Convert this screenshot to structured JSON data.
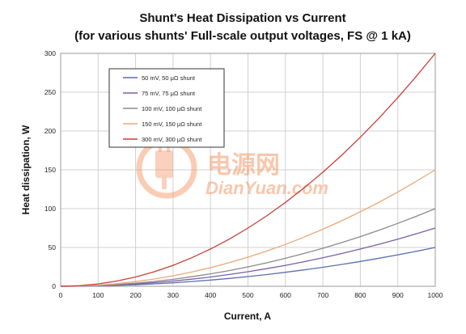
{
  "chart_data": {
    "type": "line",
    "title": "Shunt's Heat Dissipation vs Current",
    "subtitle": "(for various shunts' Full-scale output voltages, FS @ 1 kA)",
    "xlabel": "Current, A",
    "ylabel": "Heat dissipation, W",
    "xlim": [
      0,
      1000
    ],
    "ylim": [
      0,
      300
    ],
    "xticks": [
      "0",
      "100",
      "200",
      "300",
      "400",
      "500",
      "600",
      "700",
      "800",
      "900",
      "1000"
    ],
    "yticks": [
      "0",
      "50",
      "100",
      "150",
      "200",
      "250",
      "300"
    ],
    "grid": true,
    "legend_position": "top-left",
    "x": [
      0,
      50,
      100,
      150,
      200,
      250,
      300,
      350,
      400,
      450,
      500,
      550,
      600,
      650,
      700,
      750,
      800,
      850,
      900,
      950,
      1000
    ],
    "series": [
      {
        "name": "50 mV, 50 μΩ shunt",
        "color": "#5b6fb0",
        "values": [
          0,
          0.125,
          0.5,
          1.125,
          2,
          3.125,
          4.5,
          6.125,
          8,
          10.125,
          12.5,
          15.125,
          18,
          21.125,
          24.5,
          28.125,
          32,
          36.125,
          40.5,
          45.125,
          50
        ]
      },
      {
        "name": "75 mV, 75 μΩ shunt",
        "color": "#7b5fa6",
        "values": [
          0,
          0.1875,
          0.75,
          1.6875,
          3,
          4.6875,
          6.75,
          9.1875,
          12,
          15.1875,
          18.75,
          22.6875,
          27,
          31.6875,
          36.75,
          42.1875,
          48,
          54.1875,
          60.75,
          67.6875,
          75
        ]
      },
      {
        "name": "100 mV, 100 μΩ shunt",
        "color": "#8a8a8a",
        "values": [
          0,
          0.25,
          1,
          2.25,
          4,
          6.25,
          9,
          12.25,
          16,
          20.25,
          25,
          30.25,
          36,
          42.25,
          49,
          56.25,
          64,
          72.25,
          81,
          90.25,
          100
        ]
      },
      {
        "name": "150 mV, 150 μΩ shunt",
        "color": "#e8a878",
        "values": [
          0,
          0.375,
          1.5,
          3.375,
          6,
          9.375,
          13.5,
          18.375,
          24,
          30.375,
          37.5,
          45.375,
          54,
          63.375,
          73.5,
          84.375,
          96,
          108.375,
          121.5,
          135.375,
          150
        ]
      },
      {
        "name": "300 mV, 300 μΩ shunt",
        "color": "#c8403a",
        "values": [
          0,
          0.75,
          3,
          6.75,
          12,
          18.75,
          27,
          36.75,
          48,
          60.75,
          75,
          90.75,
          108,
          126.75,
          147,
          168.75,
          192,
          216.75,
          243,
          270.75,
          300
        ]
      }
    ]
  },
  "watermark": {
    "cn_text": "电源网",
    "en_text": "DianYuan.com",
    "color": "#f39a6a"
  }
}
